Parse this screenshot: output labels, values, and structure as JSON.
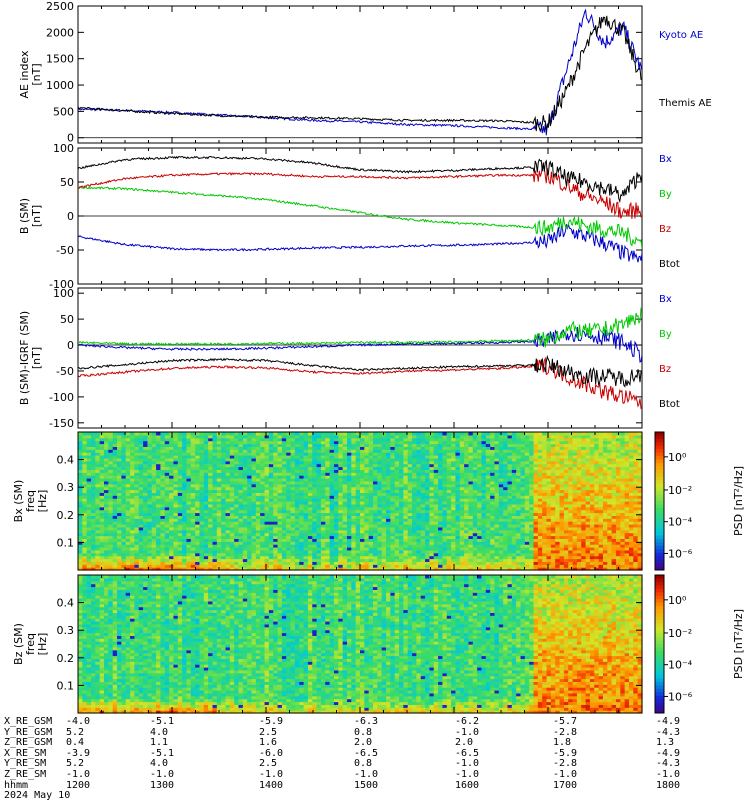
{
  "chart_data": [
    {
      "type": "line",
      "ylabel": "AE index",
      "yunit": "[nT]",
      "ylim": [
        -100,
        2500
      ],
      "yticks": [
        0,
        500,
        1000,
        1500,
        2000,
        2500
      ],
      "x_hours": [
        12,
        12.5,
        13,
        13.5,
        14,
        14.5,
        15,
        15.5,
        16,
        16.5,
        17,
        17.2,
        17.4,
        17.6,
        17.8,
        18
      ],
      "series": [
        {
          "name": "Kyoto AE",
          "color": "#0000c8",
          "values": [
            540,
            520,
            480,
            430,
            380,
            330,
            300,
            250,
            230,
            190,
            150,
            1300,
            2400,
            1800,
            2100,
            1250
          ]
        },
        {
          "name": "Themis AE",
          "color": "#000000",
          "values": [
            570,
            510,
            460,
            420,
            390,
            380,
            360,
            330,
            330,
            320,
            270,
            900,
            1700,
            2300,
            2000,
            1100
          ]
        }
      ]
    },
    {
      "type": "line",
      "ylabel": "B (SM)",
      "yunit": "[nT]",
      "ylim": [
        -100,
        100
      ],
      "yticks": [
        -100,
        -50,
        0,
        50,
        100
      ],
      "x_hours": [
        12,
        12.5,
        13,
        13.5,
        14,
        14.5,
        15,
        15.5,
        16,
        16.5,
        17,
        17.2,
        17.4,
        17.6,
        17.8,
        18
      ],
      "series": [
        {
          "name": "Bx",
          "color": "#0000c8",
          "values": [
            -30,
            -42,
            -48,
            -50,
            -49,
            -47,
            -46,
            -44,
            -43,
            -41,
            -38,
            -20,
            -30,
            -40,
            -55,
            -65
          ]
        },
        {
          "name": "By",
          "color": "#00c800",
          "values": [
            42,
            40,
            35,
            30,
            24,
            15,
            5,
            -5,
            -10,
            -14,
            -18,
            -5,
            -15,
            -20,
            -25,
            -40
          ]
        },
        {
          "name": "Bz",
          "color": "#c80000",
          "values": [
            42,
            55,
            60,
            62,
            62,
            58,
            58,
            56,
            58,
            60,
            60,
            45,
            30,
            20,
            5,
            10
          ]
        },
        {
          "name": "Btot",
          "color": "#000000",
          "values": [
            70,
            83,
            86,
            86,
            84,
            78,
            68,
            65,
            67,
            70,
            72,
            55,
            50,
            40,
            30,
            65
          ]
        }
      ]
    },
    {
      "type": "line",
      "ylabel": "B (SM)-IGRF (SM)",
      "yunit": "[nT]",
      "ylim": [
        -160,
        110
      ],
      "yticks": [
        -150,
        -100,
        -50,
        0,
        50,
        100
      ],
      "x_hours": [
        12,
        12.5,
        13,
        13.5,
        14,
        14.5,
        15,
        15.5,
        16,
        16.5,
        17,
        17.2,
        17.4,
        17.6,
        17.8,
        18
      ],
      "series": [
        {
          "name": "Bx",
          "color": "#0000c8",
          "values": [
            0,
            -5,
            -8,
            -8,
            -6,
            -3,
            0,
            2,
            3,
            5,
            8,
            25,
            20,
            15,
            5,
            -20
          ]
        },
        {
          "name": "By",
          "color": "#00c800",
          "values": [
            5,
            2,
            2,
            2,
            3,
            3,
            5,
            5,
            6,
            8,
            10,
            30,
            25,
            30,
            40,
            60
          ]
        },
        {
          "name": "Bz",
          "color": "#c80000",
          "values": [
            -60,
            -52,
            -45,
            -42,
            -44,
            -52,
            -55,
            -50,
            -48,
            -45,
            -40,
            -60,
            -75,
            -90,
            -100,
            -112
          ]
        },
        {
          "name": "Btot",
          "color": "#000000",
          "values": [
            -45,
            -38,
            -30,
            -28,
            -30,
            -40,
            -48,
            -45,
            -42,
            -40,
            -38,
            -50,
            -60,
            -60,
            -65,
            -55
          ]
        }
      ]
    },
    {
      "type": "heatmap",
      "ylabel": "Bx (SM)",
      "yunit2": "freq",
      "yunit": "[Hz]",
      "ylim": [
        0,
        0.5
      ],
      "yticks": [
        0.1,
        0.2,
        0.3,
        0.4
      ],
      "colorbar_label": "PSD [nT²/Hz]",
      "colorbar_ticks": [
        "10⁰",
        "10⁻²",
        "10⁻⁴",
        "10⁻⁶"
      ],
      "active_from_hour": 16.85
    },
    {
      "type": "heatmap",
      "ylabel": "Bz (SM)",
      "yunit2": "freq",
      "yunit": "[Hz]",
      "ylim": [
        0,
        0.5
      ],
      "yticks": [
        0.1,
        0.2,
        0.3,
        0.4
      ],
      "colorbar_label": "PSD [nT²/Hz]",
      "colorbar_ticks": [
        "10⁰",
        "10⁻²",
        "10⁻⁴",
        "10⁻⁶"
      ],
      "active_from_hour": 16.85
    }
  ],
  "footer": {
    "rows": [
      {
        "label": "X_RE_GSM",
        "values": [
          "-4.0",
          "-5.1",
          "-5.9",
          "-6.3",
          "-6.2",
          "-5.7",
          "-4.9"
        ]
      },
      {
        "label": "Y_RE_GSM",
        "values": [
          "5.2",
          "4.0",
          "2.5",
          "0.8",
          "-1.0",
          "-2.8",
          "-4.3"
        ]
      },
      {
        "label": "Z_RE_GSM",
        "values": [
          "0.4",
          "1.1",
          "1.6",
          "2.0",
          "2.0",
          "1.8",
          "1.3"
        ]
      },
      {
        "label": "X_RE_SM",
        "values": [
          "-3.9",
          "-5.1",
          "-6.0",
          "-6.5",
          "-6.5",
          "-5.9",
          "-4.9"
        ]
      },
      {
        "label": "Y_RE_SM",
        "values": [
          "5.2",
          "4.0",
          "2.5",
          "0.8",
          "-1.0",
          "-2.8",
          "-4.3"
        ]
      },
      {
        "label": "Z_RE_SM",
        "values": [
          "-1.0",
          "-1.0",
          "-1.0",
          "-1.0",
          "-1.0",
          "-1.0",
          "-1.0"
        ]
      },
      {
        "label": "hhmm",
        "values": [
          "1200",
          "1300",
          "1400",
          "1500",
          "1600",
          "1700",
          "1800"
        ]
      }
    ],
    "date": "2024 May 10"
  }
}
